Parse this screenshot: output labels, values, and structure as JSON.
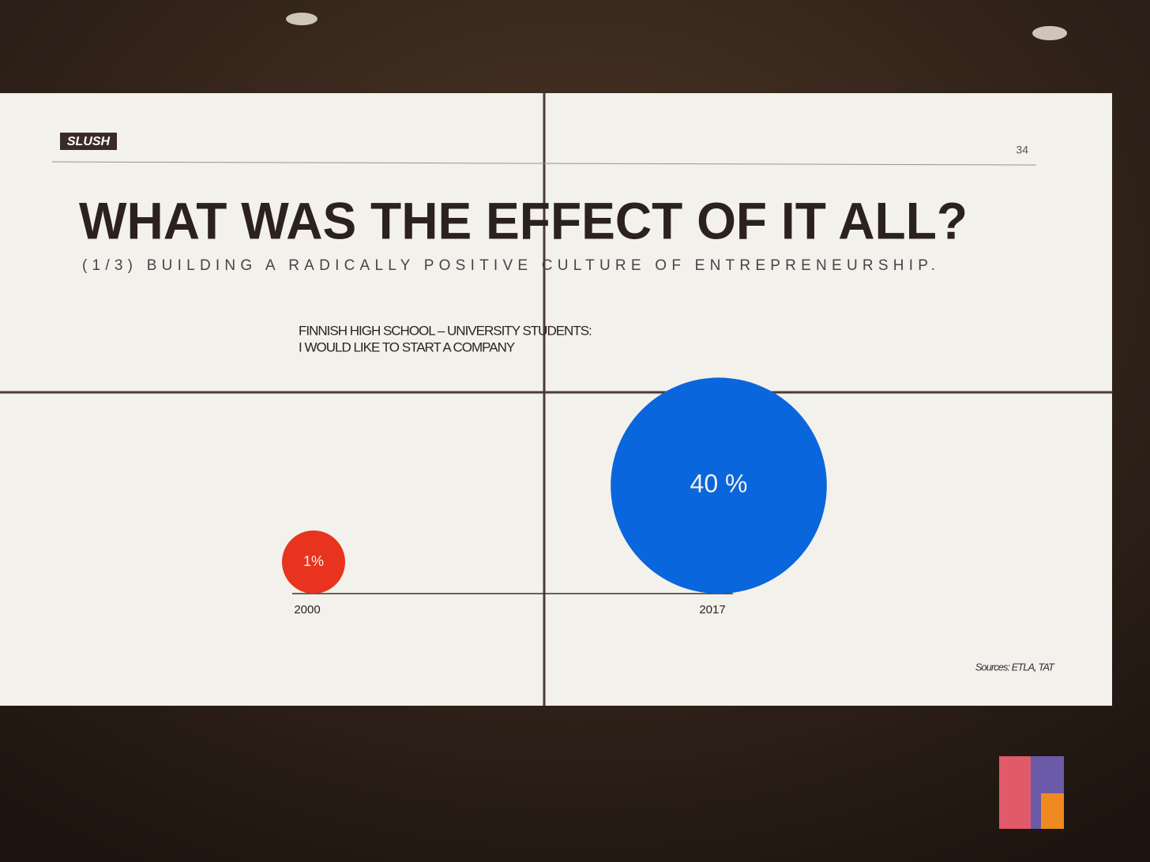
{
  "slide": {
    "logo": "SLUSH",
    "page_number": "34",
    "heading": "WHAT WAS THE EFFECT OF IT ALL?",
    "subheading": "(1/3) BUILDING A RADICALLY POSITIVE CULTURE OF ENTREPRENEURSHIP.",
    "source": "Sources: ETLA, TAT"
  },
  "chart_data": {
    "type": "bubble",
    "title": "FINNISH HIGH SCHOOL – UNIVERSITY STUDENTS:",
    "subtitle": "I WOULD LIKE TO START A COMPANY",
    "categories": [
      "2000",
      "2017"
    ],
    "values": [
      1,
      40
    ],
    "value_labels": [
      "1%",
      "40 %"
    ],
    "colors": [
      "#e8341f",
      "#0a66dc"
    ]
  }
}
